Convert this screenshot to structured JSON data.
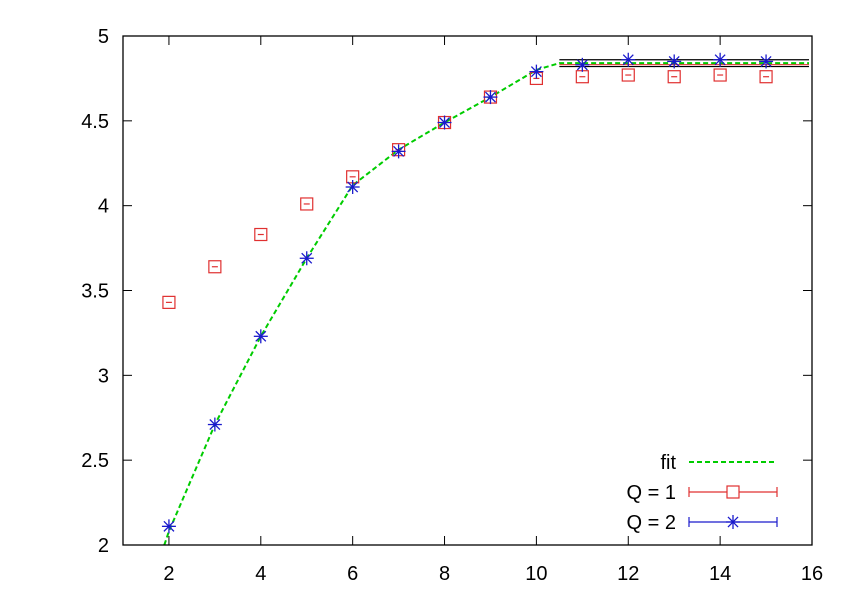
{
  "chart_data": {
    "type": "scatter",
    "title": "",
    "xlabel": "",
    "ylabel": "",
    "xlim": [
      1,
      16
    ],
    "ylim": [
      2,
      5
    ],
    "xticks": [
      "2",
      "4",
      "6",
      "8",
      "10",
      "12",
      "14",
      "16"
    ],
    "yticks": [
      "2",
      "2.5",
      "3",
      "3.5",
      "4",
      "4.5",
      "5"
    ],
    "grid": false,
    "legend_position": "bottom-right",
    "colors": {
      "fit": "#00cc00",
      "q1": "#e03030",
      "q2": "#1a1acc",
      "band": "#000000"
    },
    "series": [
      {
        "name": "fit",
        "style": "dashed-line",
        "x": [
          1.9,
          2,
          3,
          4,
          5,
          6,
          7,
          8,
          9,
          10,
          10.5,
          11,
          12,
          13,
          14,
          15,
          16
        ],
        "y": [
          2.0,
          2.08,
          2.71,
          3.23,
          3.69,
          4.12,
          4.33,
          4.49,
          4.64,
          4.8,
          4.84,
          4.84,
          4.84,
          4.84,
          4.84,
          4.84,
          4.84
        ]
      },
      {
        "name": "Q = 1",
        "marker": "open-square",
        "x": [
          2,
          3,
          4,
          5,
          6,
          7,
          8,
          9,
          10,
          11,
          12,
          13,
          14,
          15
        ],
        "y": [
          3.43,
          3.64,
          3.83,
          4.01,
          4.17,
          4.33,
          4.49,
          4.64,
          4.75,
          4.76,
          4.77,
          4.76,
          4.77,
          4.76
        ]
      },
      {
        "name": "Q = 2",
        "marker": "star",
        "x": [
          2,
          3,
          4,
          5,
          6,
          7,
          8,
          9,
          10,
          11,
          12,
          13,
          14,
          15
        ],
        "y": [
          2.11,
          2.71,
          3.23,
          3.69,
          4.11,
          4.32,
          4.49,
          4.64,
          4.79,
          4.83,
          4.86,
          4.85,
          4.86,
          4.85
        ]
      }
    ],
    "plateau_band": {
      "x_start": 10.5,
      "x_end": 16,
      "center": 4.84,
      "lower": 4.82,
      "upper": 4.86
    }
  }
}
